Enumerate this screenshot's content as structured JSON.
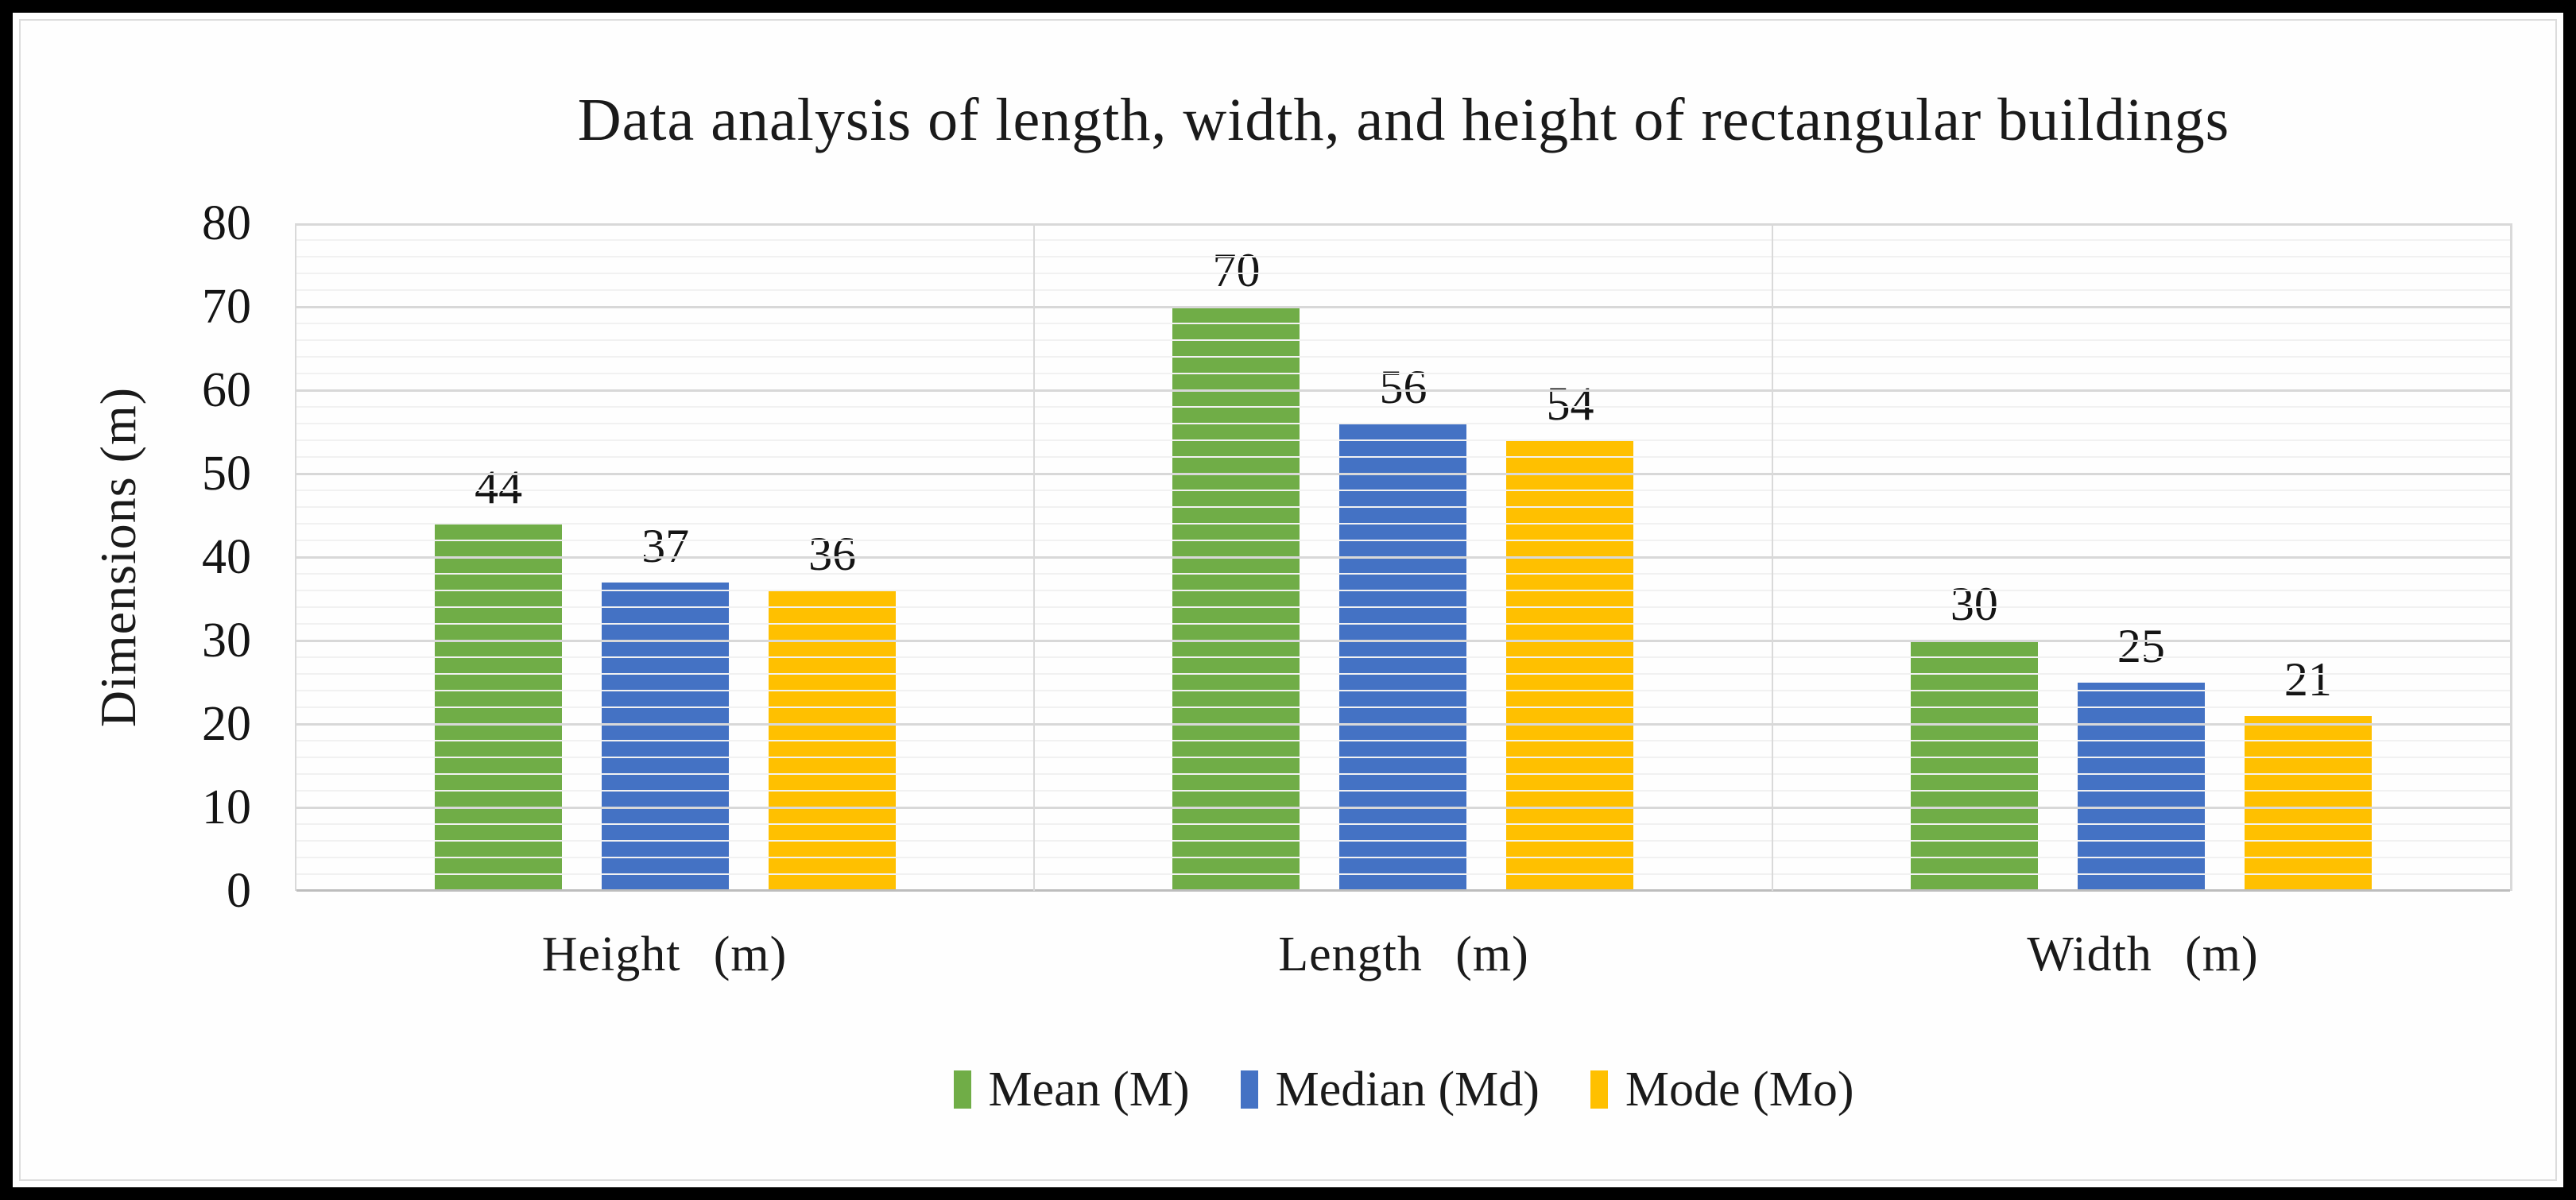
{
  "figure": {
    "frame_color": "#000000",
    "background_color": "#fefefe"
  },
  "chart_data": {
    "type": "bar",
    "title": "Data analysis of length, width, and height of rectangular buildings",
    "categories": [
      "Height (m)",
      "Length (m)",
      "Width (m)"
    ],
    "series": [
      {
        "name": "Mean (M)",
        "color": "#70AD47",
        "values": [
          44,
          70,
          30
        ]
      },
      {
        "name": "Median (Md)",
        "color": "#4472C4",
        "values": [
          37,
          56,
          25
        ]
      },
      {
        "name": "Mode (Mo)",
        "color": "#FFC000",
        "values": [
          36,
          54,
          21
        ]
      }
    ],
    "xlabel": "",
    "ylabel": "Dimensions (m)",
    "ylim": [
      0,
      80
    ],
    "yticks": [
      0,
      10,
      20,
      30,
      40,
      50,
      60,
      70,
      80
    ],
    "grid": {
      "major_step": 10,
      "minor_step": 2,
      "grid_on": true
    },
    "legend_position": "bottom",
    "value_labels": true,
    "gridline_major_color": "#d8d8d8",
    "gridline_minor_color": "#f1f1f1",
    "axis_line_color": "#bdbdbd"
  }
}
